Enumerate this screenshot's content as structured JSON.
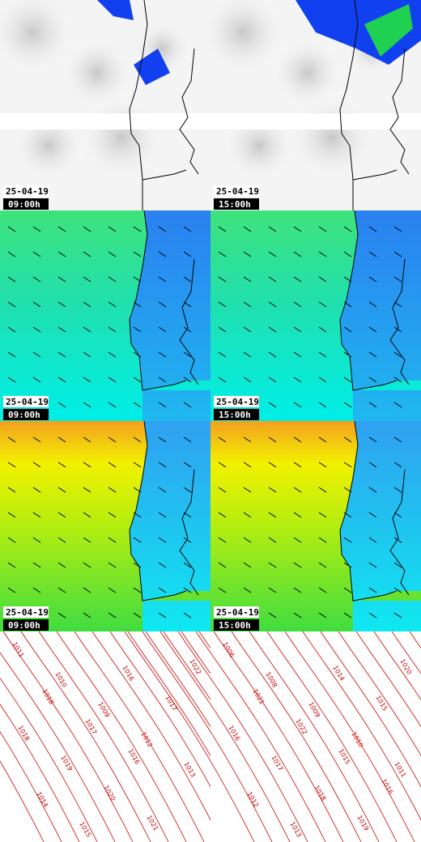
{
  "panels": [
    {
      "date": "25-04-19",
      "time": "09:00h"
    },
    {
      "date": "25-04-19",
      "time": "15:00h"
    }
  ],
  "isobars": {
    "left": [
      "1011",
      "1010",
      "1009",
      "1012",
      "1013",
      "1014",
      "1015",
      "1016",
      "1017",
      "1018",
      "1019",
      "1020",
      "1021",
      "1022",
      "1018",
      "1017",
      "1016"
    ],
    "right": [
      "1006",
      "1008",
      "1009",
      "1010",
      "1011",
      "1012",
      "1013",
      "1014",
      "1015",
      "1016",
      "1017",
      "1018",
      "1019",
      "1020",
      "1021",
      "1022",
      "1015",
      "1016"
    ]
  }
}
